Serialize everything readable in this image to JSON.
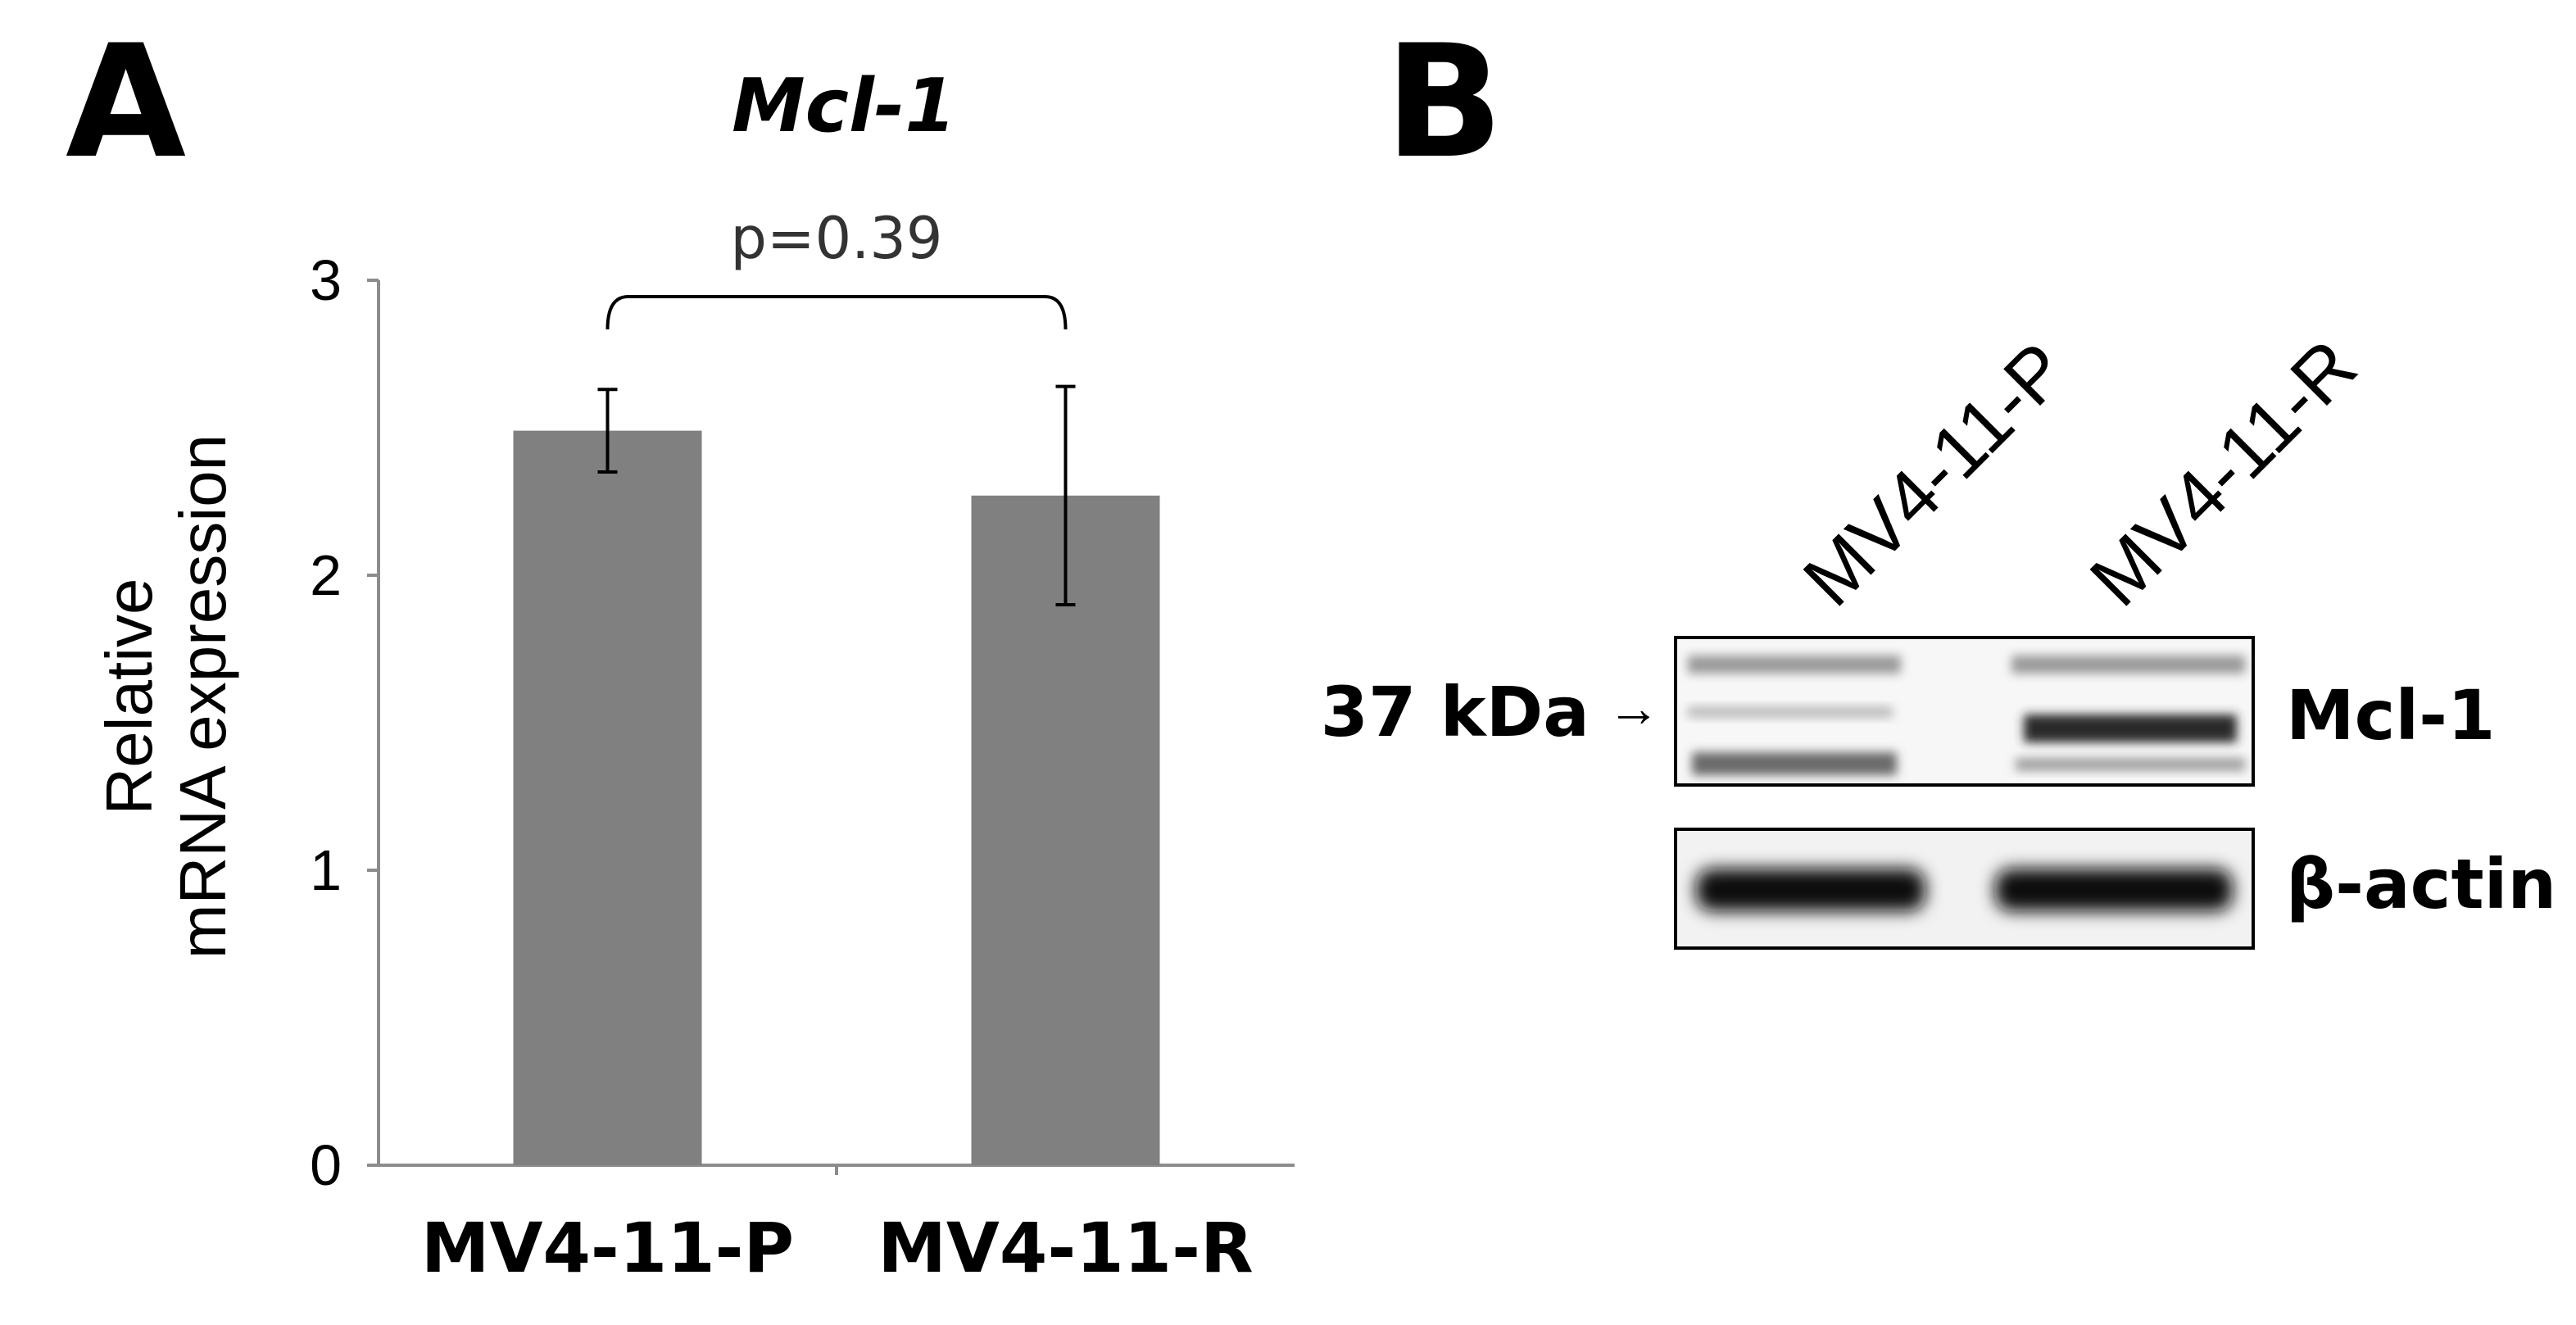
{
  "panel_a_label": "A",
  "panel_b_label": "B",
  "chart_data": {
    "type": "bar",
    "title": "Mcl-1",
    "ylabel_line1": "Relative",
    "ylabel_line2": "mRNA expression",
    "xlabel": "",
    "categories": [
      "MV4-11-P",
      "MV4-11-R"
    ],
    "values": [
      2.49,
      2.27
    ],
    "error": [
      0.14,
      0.37
    ],
    "ylim": [
      0,
      3
    ],
    "yticks": [
      "0",
      "1",
      "2",
      "3"
    ],
    "annotation": "p=0.39",
    "grid": false,
    "bar_color": "#808080"
  },
  "blot": {
    "lanes": [
      "MV4-11-P",
      "MV4-11-R"
    ],
    "marker": "37 kDa",
    "marker_arrow": "→",
    "bands": [
      "Mcl-1",
      "β-actin"
    ]
  }
}
